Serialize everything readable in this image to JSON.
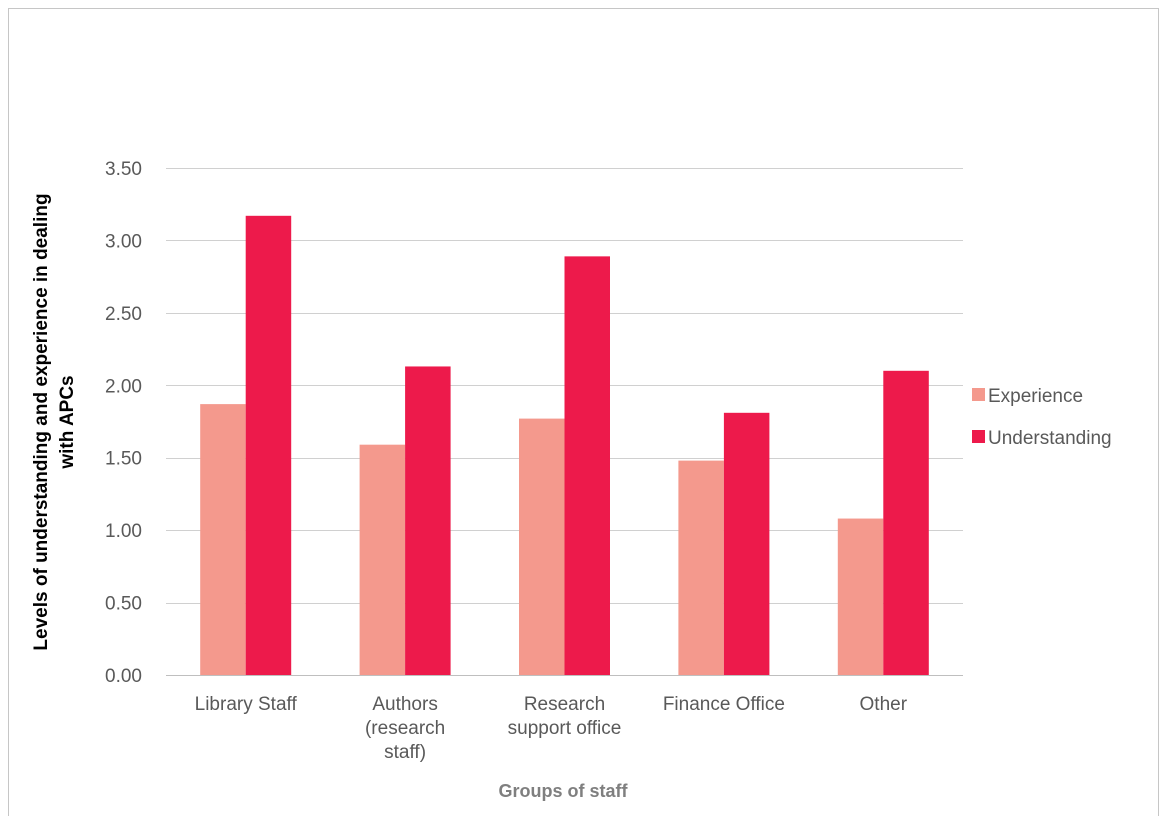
{
  "chart_data": {
    "type": "bar",
    "title": "",
    "xlabel": "Groups of staff",
    "ylabel_lines": [
      "Levels of understanding and experience in dealing",
      "with APCs"
    ],
    "categories": [
      [
        "Library Staff"
      ],
      [
        "Authors",
        "(research",
        "staff)"
      ],
      [
        "Research",
        "support office"
      ],
      [
        "Finance Office"
      ],
      [
        "Other"
      ]
    ],
    "series": [
      {
        "name": "Experience",
        "color": "#f4998d",
        "values": [
          1.87,
          1.59,
          1.77,
          1.48,
          1.08
        ]
      },
      {
        "name": "Understanding",
        "color": "#ed1a4b",
        "values": [
          3.17,
          2.13,
          2.89,
          1.81,
          2.1
        ]
      }
    ],
    "ylim": [
      0,
      3.5
    ],
    "ytick_step": 0.5,
    "ytick_decimals": 2,
    "grid": true,
    "legend_position": "right"
  }
}
